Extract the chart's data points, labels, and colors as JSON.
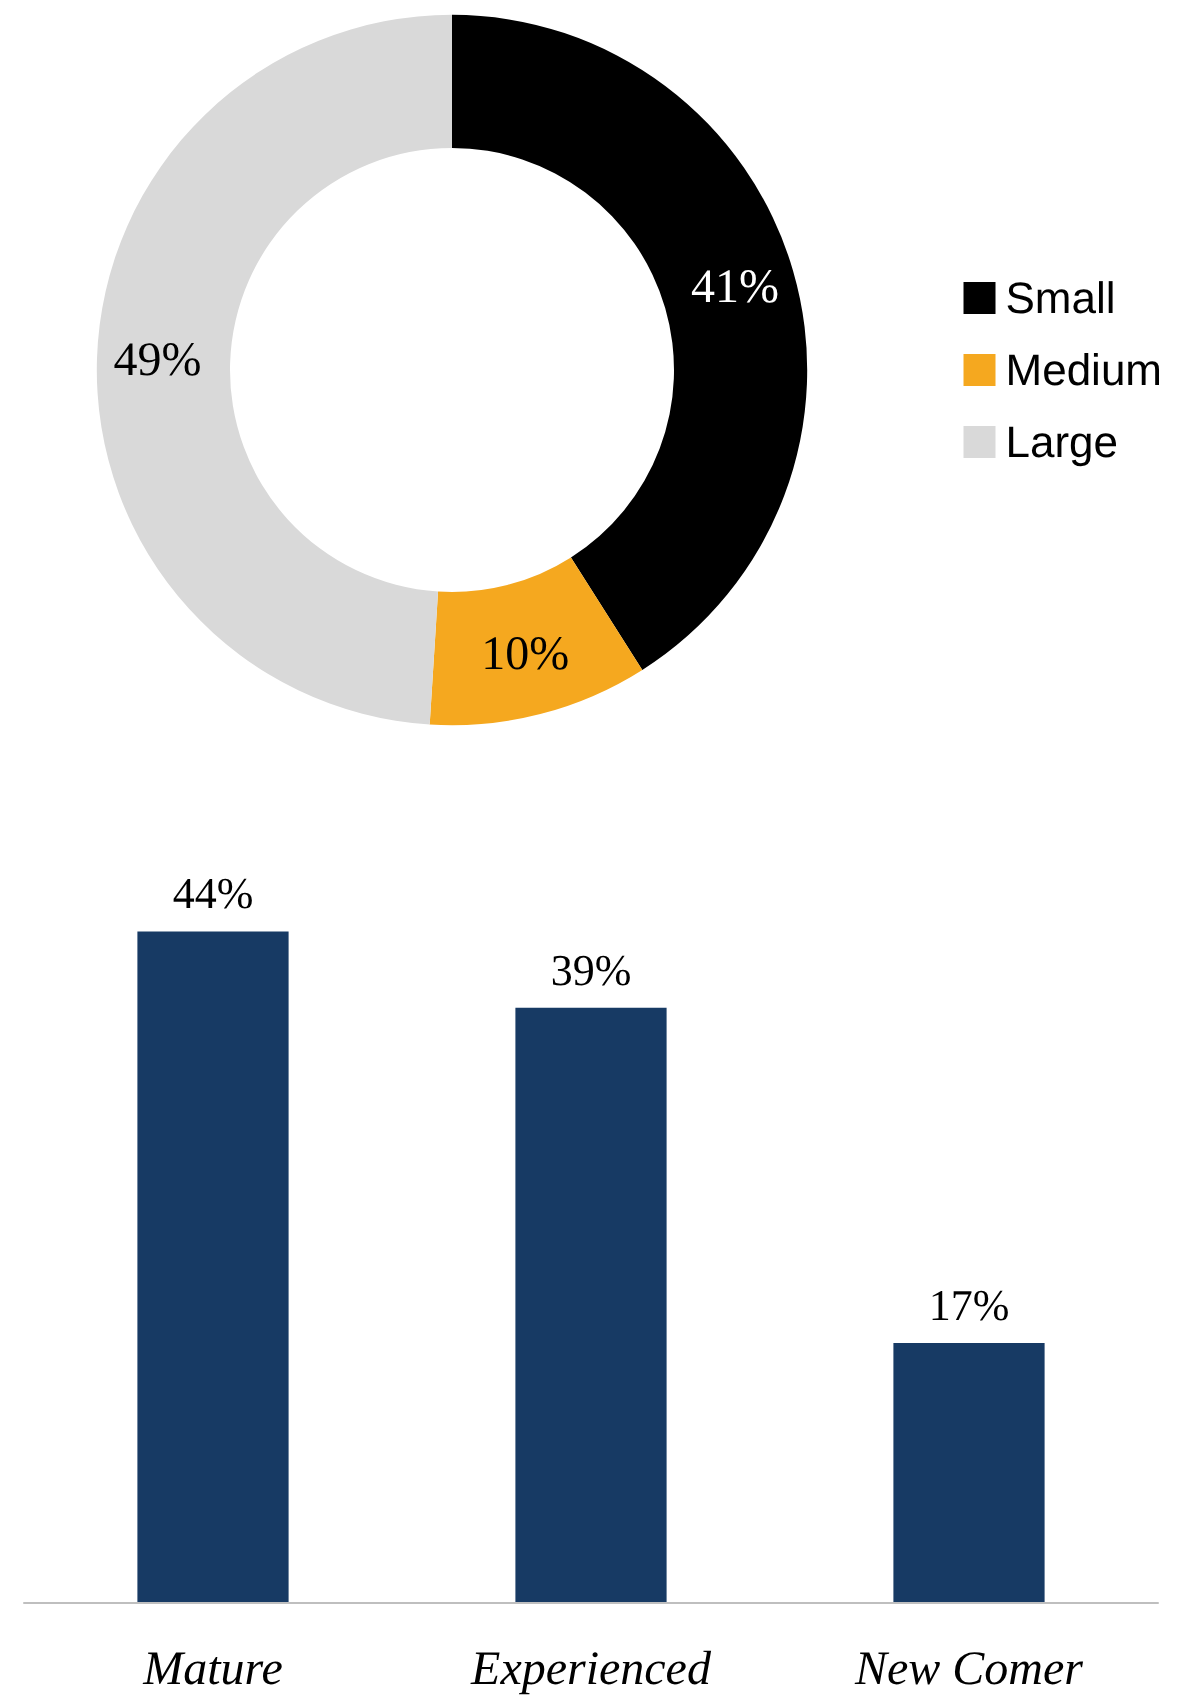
{
  "chart_data": [
    {
      "type": "donut",
      "categories": [
        "Small",
        "Medium",
        "Large"
      ],
      "values": [
        41,
        10,
        49
      ],
      "colors": [
        "#000000",
        "#f5a81f",
        "#d9d9d9"
      ],
      "value_labels": [
        "41%",
        "10%",
        "49%"
      ],
      "legend": "right"
    },
    {
      "type": "bar",
      "categories": [
        "Mature",
        "Experienced",
        "New Comer"
      ],
      "values": [
        44,
        39,
        17
      ],
      "color": "#173a64",
      "value_labels": [
        "44%",
        "39%",
        "17%"
      ],
      "tick_labels": "x"
    }
  ]
}
